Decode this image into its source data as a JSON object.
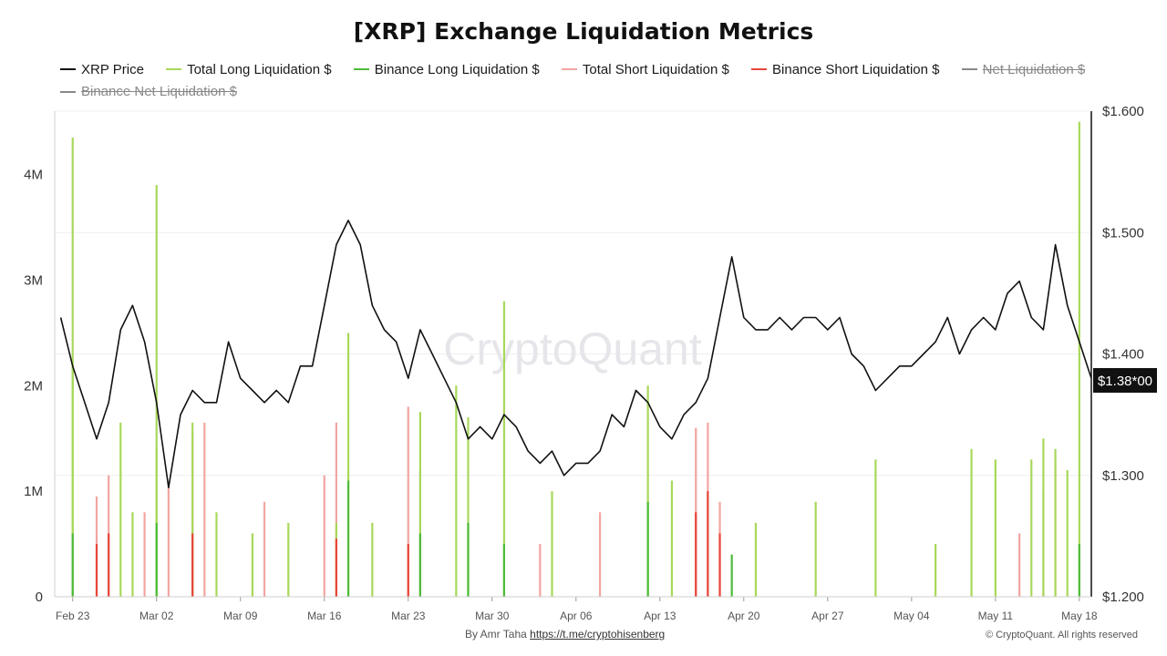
{
  "title": "[XRP] Exchange Liquidation Metrics",
  "legend": [
    {
      "label": "XRP Price",
      "color": "#111111",
      "disabled": false
    },
    {
      "label": "Total Long Liquidation $",
      "color": "#a8d85a",
      "disabled": false
    },
    {
      "label": "Binance Long Liquidation $",
      "color": "#4dbb3a",
      "disabled": false
    },
    {
      "label": "Total Short Liquidation $",
      "color": "#f2a5a1",
      "disabled": false
    },
    {
      "label": "Binance Short Liquidation $",
      "color": "#e8463a",
      "disabled": false
    },
    {
      "label": "Net Liquidation $",
      "color": "#888888",
      "disabled": true
    },
    {
      "label": "Binance Net Liquidation $",
      "color": "#888888",
      "disabled": true
    }
  ],
  "watermark": "CryptoQuant",
  "footer": {
    "by": "By Amr Taha",
    "link": "https://t.me/cryptohisenberg",
    "copyright": "© CryptoQuant. All rights reserved"
  },
  "price_badge": "$1.38*00",
  "chart_data": {
    "type": "line",
    "x_ticks": [
      "Feb 23",
      "Mar 02",
      "Mar 09",
      "Mar 16",
      "Mar 23",
      "Mar 30",
      "Apr 06",
      "Apr 13",
      "Apr 20",
      "Apr 27",
      "May 04",
      "May 11",
      "May 18"
    ],
    "y_left": {
      "ticks": [
        "0",
        "1M",
        "2M",
        "3M",
        "4M"
      ],
      "range": [
        0,
        4600000
      ]
    },
    "y_right": {
      "ticks": [
        "$1.200",
        "$1.300",
        "$1.400",
        "$1.500",
        "$1.600"
      ],
      "range": [
        1.2,
        1.6
      ]
    },
    "x_range": [
      "2025-02-22",
      "2025-05-19"
    ],
    "series": [
      {
        "name": "XRP Price",
        "axis": "right",
        "color": "#111111",
        "points": [
          [
            "2025-02-22",
            1.43
          ],
          [
            "2025-02-23",
            1.39
          ],
          [
            "2025-02-24",
            1.36
          ],
          [
            "2025-02-25",
            1.33
          ],
          [
            "2025-02-26",
            1.36
          ],
          [
            "2025-02-27",
            1.42
          ],
          [
            "2025-02-28",
            1.44
          ],
          [
            "2025-03-01",
            1.41
          ],
          [
            "2025-03-02",
            1.36
          ],
          [
            "2025-03-03",
            1.29
          ],
          [
            "2025-03-04",
            1.35
          ],
          [
            "2025-03-05",
            1.37
          ],
          [
            "2025-03-06",
            1.36
          ],
          [
            "2025-03-07",
            1.36
          ],
          [
            "2025-03-08",
            1.41
          ],
          [
            "2025-03-09",
            1.38
          ],
          [
            "2025-03-10",
            1.37
          ],
          [
            "2025-03-11",
            1.36
          ],
          [
            "2025-03-12",
            1.37
          ],
          [
            "2025-03-13",
            1.36
          ],
          [
            "2025-03-14",
            1.39
          ],
          [
            "2025-03-15",
            1.39
          ],
          [
            "2025-03-16",
            1.44
          ],
          [
            "2025-03-17",
            1.49
          ],
          [
            "2025-03-18",
            1.51
          ],
          [
            "2025-03-19",
            1.49
          ],
          [
            "2025-03-20",
            1.44
          ],
          [
            "2025-03-21",
            1.42
          ],
          [
            "2025-03-22",
            1.41
          ],
          [
            "2025-03-23",
            1.38
          ],
          [
            "2025-03-24",
            1.42
          ],
          [
            "2025-03-25",
            1.4
          ],
          [
            "2025-03-26",
            1.38
          ],
          [
            "2025-03-27",
            1.36
          ],
          [
            "2025-03-28",
            1.33
          ],
          [
            "2025-03-29",
            1.34
          ],
          [
            "2025-03-30",
            1.33
          ],
          [
            "2025-03-31",
            1.35
          ],
          [
            "2025-04-01",
            1.34
          ],
          [
            "2025-04-02",
            1.32
          ],
          [
            "2025-04-03",
            1.31
          ],
          [
            "2025-04-04",
            1.32
          ],
          [
            "2025-04-05",
            1.3
          ],
          [
            "2025-04-06",
            1.31
          ],
          [
            "2025-04-07",
            1.31
          ],
          [
            "2025-04-08",
            1.32
          ],
          [
            "2025-04-09",
            1.35
          ],
          [
            "2025-04-10",
            1.34
          ],
          [
            "2025-04-11",
            1.37
          ],
          [
            "2025-04-12",
            1.36
          ],
          [
            "2025-04-13",
            1.34
          ],
          [
            "2025-04-14",
            1.33
          ],
          [
            "2025-04-15",
            1.35
          ],
          [
            "2025-04-16",
            1.36
          ],
          [
            "2025-04-17",
            1.38
          ],
          [
            "2025-04-18",
            1.43
          ],
          [
            "2025-04-19",
            1.48
          ],
          [
            "2025-04-20",
            1.43
          ],
          [
            "2025-04-21",
            1.42
          ],
          [
            "2025-04-22",
            1.42
          ],
          [
            "2025-04-23",
            1.43
          ],
          [
            "2025-04-24",
            1.42
          ],
          [
            "2025-04-25",
            1.43
          ],
          [
            "2025-04-26",
            1.43
          ],
          [
            "2025-04-27",
            1.42
          ],
          [
            "2025-04-28",
            1.43
          ],
          [
            "2025-04-29",
            1.4
          ],
          [
            "2025-04-30",
            1.39
          ],
          [
            "2025-05-01",
            1.37
          ],
          [
            "2025-05-02",
            1.38
          ],
          [
            "2025-05-03",
            1.39
          ],
          [
            "2025-05-04",
            1.39
          ],
          [
            "2025-05-05",
            1.4
          ],
          [
            "2025-05-06",
            1.41
          ],
          [
            "2025-05-07",
            1.43
          ],
          [
            "2025-05-08",
            1.4
          ],
          [
            "2025-05-09",
            1.42
          ],
          [
            "2025-05-10",
            1.43
          ],
          [
            "2025-05-11",
            1.42
          ],
          [
            "2025-05-12",
            1.45
          ],
          [
            "2025-05-13",
            1.46
          ],
          [
            "2025-05-14",
            1.43
          ],
          [
            "2025-05-15",
            1.42
          ],
          [
            "2025-05-16",
            1.49
          ],
          [
            "2025-05-17",
            1.44
          ],
          [
            "2025-05-18",
            1.41
          ],
          [
            "2025-05-19",
            1.38
          ]
        ]
      },
      {
        "name": "Total Long Liquidation $",
        "axis": "left",
        "color": "#a8d85a",
        "spikes": [
          [
            "2025-02-23",
            4350000
          ],
          [
            "2025-02-23",
            2200000
          ],
          [
            "2025-02-27",
            1650000
          ],
          [
            "2025-02-28",
            800000
          ],
          [
            "2025-03-02",
            3900000
          ],
          [
            "2025-03-02",
            1400000
          ],
          [
            "2025-03-05",
            1650000
          ],
          [
            "2025-03-07",
            800000
          ],
          [
            "2025-03-10",
            600000
          ],
          [
            "2025-03-13",
            700000
          ],
          [
            "2025-03-17",
            700000
          ],
          [
            "2025-03-18",
            2500000
          ],
          [
            "2025-03-20",
            700000
          ],
          [
            "2025-03-24",
            1750000
          ],
          [
            "2025-03-27",
            2000000
          ],
          [
            "2025-03-28",
            1700000
          ],
          [
            "2025-03-31",
            2800000
          ],
          [
            "2025-04-04",
            1000000
          ],
          [
            "2025-04-12",
            2000000
          ],
          [
            "2025-04-14",
            1100000
          ],
          [
            "2025-04-21",
            700000
          ],
          [
            "2025-04-26",
            900000
          ],
          [
            "2025-05-01",
            1300000
          ],
          [
            "2025-05-06",
            500000
          ],
          [
            "2025-05-09",
            1400000
          ],
          [
            "2025-05-11",
            1300000
          ],
          [
            "2025-05-14",
            1300000
          ],
          [
            "2025-05-15",
            1500000
          ],
          [
            "2025-05-16",
            1400000
          ],
          [
            "2025-05-18",
            4500000
          ],
          [
            "2025-05-17",
            1200000
          ]
        ]
      },
      {
        "name": "Binance Long Liquidation $",
        "axis": "left",
        "color": "#4dbb3a",
        "spikes": [
          [
            "2025-02-23",
            600000
          ],
          [
            "2025-03-02",
            700000
          ],
          [
            "2025-03-18",
            1100000
          ],
          [
            "2025-03-24",
            600000
          ],
          [
            "2025-03-28",
            700000
          ],
          [
            "2025-03-31",
            500000
          ],
          [
            "2025-04-12",
            900000
          ],
          [
            "2025-04-19",
            400000
          ],
          [
            "2025-05-18",
            500000
          ]
        ]
      },
      {
        "name": "Total Short Liquidation $",
        "axis": "left",
        "color": "#f2a5a1",
        "spikes": [
          [
            "2025-02-25",
            950000
          ],
          [
            "2025-02-26",
            1150000
          ],
          [
            "2025-03-01",
            800000
          ],
          [
            "2025-03-03",
            1050000
          ],
          [
            "2025-03-05",
            1550000
          ],
          [
            "2025-03-06",
            1650000
          ],
          [
            "2025-03-11",
            900000
          ],
          [
            "2025-03-16",
            1150000
          ],
          [
            "2025-03-17",
            1650000
          ],
          [
            "2025-03-23",
            1800000
          ],
          [
            "2025-03-24",
            1200000
          ],
          [
            "2025-04-03",
            500000
          ],
          [
            "2025-04-08",
            800000
          ],
          [
            "2025-04-16",
            1600000
          ],
          [
            "2025-04-17",
            1650000
          ],
          [
            "2025-04-18",
            900000
          ],
          [
            "2025-05-15",
            1000000
          ],
          [
            "2025-05-16",
            1250000
          ],
          [
            "2025-05-13",
            600000
          ]
        ]
      },
      {
        "name": "Binance Short Liquidation $",
        "axis": "left",
        "color": "#e8463a",
        "spikes": [
          [
            "2025-02-25",
            500000
          ],
          [
            "2025-02-26",
            600000
          ],
          [
            "2025-03-05",
            600000
          ],
          [
            "2025-03-17",
            550000
          ],
          [
            "2025-03-23",
            500000
          ],
          [
            "2025-04-16",
            800000
          ],
          [
            "2025-04-17",
            1000000
          ],
          [
            "2025-04-18",
            600000
          ]
        ]
      }
    ]
  }
}
